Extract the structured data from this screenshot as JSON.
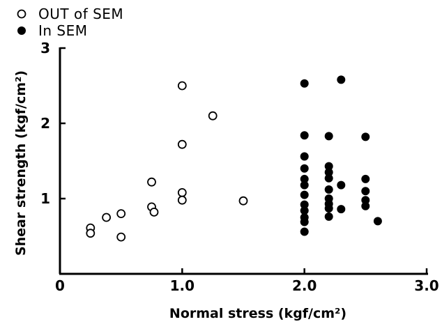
{
  "chart_data": {
    "type": "scatter",
    "title": "",
    "xlabel": "Normal stress (kgf/cm²)",
    "ylabel": "Shear strength (kgf/cm²)",
    "xlim": [
      0,
      3.0
    ],
    "ylim": [
      0,
      3
    ],
    "x_ticks": [
      {
        "value": 0,
        "label": "0"
      },
      {
        "value": 1.0,
        "label": "1.0"
      },
      {
        "value": 2.0,
        "label": "2.0"
      },
      {
        "value": 3.0,
        "label": "3.0"
      }
    ],
    "y_ticks": [
      {
        "value": 1,
        "label": "1"
      },
      {
        "value": 2,
        "label": "2"
      },
      {
        "value": 3,
        "label": "3"
      }
    ],
    "grid": false,
    "legend_position": "top-left",
    "series": [
      {
        "name": "OUT of SEM",
        "marker": "open-circle",
        "color": "#000000",
        "points": [
          [
            0.25,
            0.61
          ],
          [
            0.25,
            0.54
          ],
          [
            0.38,
            0.75
          ],
          [
            0.5,
            0.8
          ],
          [
            0.5,
            0.49
          ],
          [
            0.75,
            1.22
          ],
          [
            0.75,
            0.89
          ],
          [
            0.77,
            0.82
          ],
          [
            1.0,
            2.5
          ],
          [
            1.0,
            1.72
          ],
          [
            1.0,
            1.08
          ],
          [
            1.0,
            0.98
          ],
          [
            1.25,
            2.1
          ],
          [
            1.5,
            0.97
          ]
        ]
      },
      {
        "name": "In SEM",
        "marker": "filled-circle",
        "color": "#000000",
        "points": [
          [
            2.0,
            2.53
          ],
          [
            2.0,
            1.84
          ],
          [
            2.0,
            1.56
          ],
          [
            2.0,
            1.4
          ],
          [
            2.0,
            1.26
          ],
          [
            2.0,
            1.18
          ],
          [
            2.0,
            1.05
          ],
          [
            2.0,
            0.92
          ],
          [
            2.0,
            0.84
          ],
          [
            2.0,
            0.75
          ],
          [
            2.0,
            0.69
          ],
          [
            2.0,
            0.56
          ],
          [
            2.2,
            1.83
          ],
          [
            2.2,
            1.43
          ],
          [
            2.2,
            1.35
          ],
          [
            2.2,
            1.27
          ],
          [
            2.2,
            1.12
          ],
          [
            2.2,
            1.0
          ],
          [
            2.2,
            0.93
          ],
          [
            2.2,
            0.87
          ],
          [
            2.2,
            0.76
          ],
          [
            2.3,
            2.58
          ],
          [
            2.3,
            1.18
          ],
          [
            2.3,
            0.86
          ],
          [
            2.5,
            1.82
          ],
          [
            2.5,
            1.26
          ],
          [
            2.5,
            1.1
          ],
          [
            2.5,
            0.98
          ],
          [
            2.5,
            0.9
          ],
          [
            2.6,
            0.7
          ]
        ]
      }
    ]
  }
}
